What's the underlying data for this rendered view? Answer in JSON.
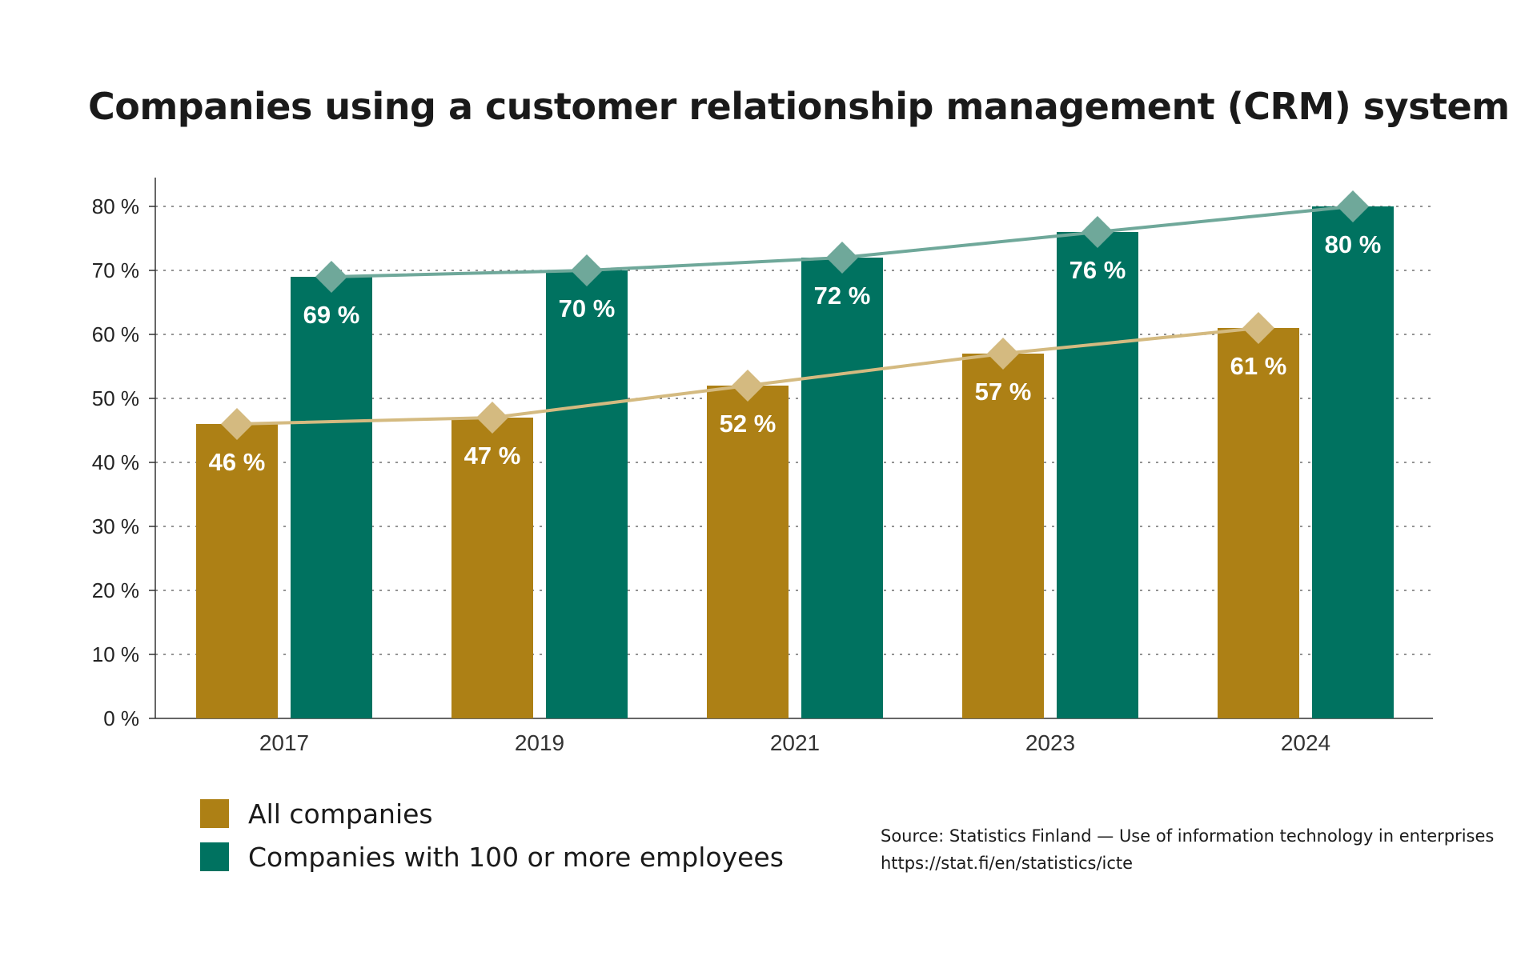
{
  "chart_data": {
    "type": "bar",
    "title": "Companies using a customer relationship management (CRM) system",
    "categories": [
      "2017",
      "2019",
      "2021",
      "2023",
      "2024"
    ],
    "ylim": [
      0,
      85
    ],
    "y_ticks": [
      0,
      10,
      20,
      30,
      40,
      50,
      60,
      70,
      80
    ],
    "y_tick_labels": [
      "0 %",
      "10 %",
      "20 %",
      "30 %",
      "40 %",
      "50 %",
      "60 %",
      "70 %",
      "80 %"
    ],
    "grid": true,
    "legend_position": "bottom-left",
    "overlay": "line with diamond markers connecting each series' values",
    "series": [
      {
        "name": "All companies",
        "values": [
          46,
          47,
          52,
          57,
          61
        ],
        "labels": [
          "46 %",
          "47 %",
          "52 %",
          "57 %",
          "61 %"
        ],
        "color": "#ad8015",
        "line_color": "#d4ba80"
      },
      {
        "name": "Companies with 100 or more employees",
        "values": [
          69,
          70,
          72,
          76,
          80
        ],
        "labels": [
          "69 %",
          "70 %",
          "72 %",
          "76 %",
          "80 %"
        ],
        "color": "#007260",
        "line_color": "#6fa89a"
      }
    ]
  },
  "source": {
    "line1": "Source: Statistics Finland — Use of information technology in enterprises",
    "line2": "https://stat.fi/en/statistics/icte"
  }
}
